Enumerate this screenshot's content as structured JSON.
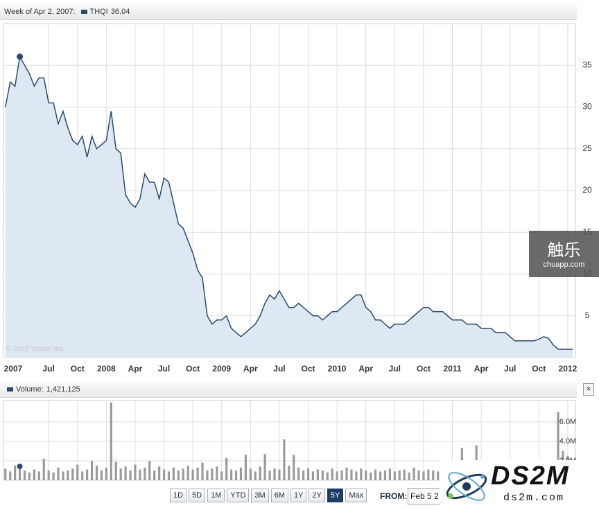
{
  "chart_data": [
    {
      "type": "area",
      "title": "Week of Apr 2, 2007:",
      "highlight_x": 3,
      "highlight_value": 36.04,
      "x": [
        1.5,
        2,
        2.5,
        3,
        3.5,
        4,
        4.5,
        5,
        5.5,
        6,
        6.5,
        7,
        7.5,
        8,
        8.5,
        9,
        9.5,
        10,
        10.5,
        11,
        11.5,
        12,
        12.5,
        13,
        13.5,
        14,
        14.5,
        15,
        15.5,
        16,
        16.5,
        17,
        17.5,
        18,
        18.5,
        19,
        19.5,
        20,
        20.5,
        21,
        21.5,
        22,
        22.5,
        23,
        23.5,
        24,
        24.5,
        25,
        25.5,
        26,
        26.5,
        27,
        27.5,
        28,
        28.5,
        29,
        29.5,
        30,
        30.5,
        31,
        31.5,
        32,
        32.5,
        33,
        33.5,
        34,
        34.5,
        35,
        35.5,
        36,
        36.5,
        37,
        37.5,
        38,
        38.5,
        39,
        39.5,
        40,
        40.5,
        41,
        41.5,
        42,
        42.5,
        43,
        43.5,
        44,
        44.5,
        45,
        45.5,
        46,
        46.5,
        47,
        47.5,
        48,
        48.5,
        49,
        49.5,
        50,
        50.5,
        51,
        51.5,
        52,
        52.5,
        53,
        53.5,
        54,
        54.5,
        55,
        55.5,
        56,
        56.5,
        57,
        57.5,
        58,
        58.5,
        59,
        59.5,
        60,
        60.5
      ],
      "series": [
        {
          "name": "THQI",
          "color": "#2b4a6b",
          "fill": "#dde8f3",
          "values": [
            30,
            33,
            32.5,
            36.04,
            35,
            34,
            32.5,
            33.5,
            33.5,
            30.5,
            30.5,
            28,
            29.5,
            27.5,
            26,
            25.5,
            26.5,
            24,
            26.5,
            25,
            25.5,
            26,
            29.5,
            25,
            24.5,
            19.5,
            18.5,
            18,
            19,
            22,
            21,
            21,
            19,
            21.5,
            21,
            18.5,
            16,
            15.5,
            14,
            12.5,
            10.5,
            9.5,
            5,
            4,
            4.5,
            4.5,
            5,
            3.5,
            3,
            2.5,
            3,
            3.5,
            4,
            5,
            6.5,
            7.5,
            7,
            8,
            7,
            6,
            6,
            6.5,
            6,
            5.5,
            5,
            5,
            4.5,
            5,
            5.5,
            5.5,
            6,
            6.5,
            7,
            7.5,
            7.5,
            6,
            5.5,
            4.5,
            4.5,
            4,
            3.5,
            4,
            4,
            4,
            4.5,
            5,
            5.5,
            6,
            6,
            5.5,
            5.5,
            5.5,
            5,
            4.5,
            4.5,
            4.5,
            4,
            4,
            4,
            3.5,
            3.5,
            3.5,
            3,
            3,
            3,
            2.5,
            2,
            2,
            2,
            2,
            2,
            2.2,
            2.5,
            2.3,
            1.5,
            1,
            1,
            1,
            1
          ]
        }
      ],
      "xlim": [
        1.3,
        60.8
      ],
      "ylim": [
        0,
        40
      ],
      "yticks": [
        5,
        10,
        15,
        20,
        25,
        30,
        35
      ],
      "xticks": [
        {
          "value": 0,
          "label": "2007"
        },
        {
          "value": 6,
          "label": "Jul"
        },
        {
          "value": 9,
          "label": "Oct"
        },
        {
          "value": 12,
          "label": "2008"
        },
        {
          "value": 15,
          "label": "Apr"
        },
        {
          "value": 18,
          "label": "Jul"
        },
        {
          "value": 21,
          "label": "Oct"
        },
        {
          "value": 24,
          "label": "2009"
        },
        {
          "value": 27,
          "label": "Apr"
        },
        {
          "value": 30,
          "label": "Jul"
        },
        {
          "value": 33,
          "label": "Oct"
        },
        {
          "value": 36,
          "label": "2010"
        },
        {
          "value": 39,
          "label": "Apr"
        },
        {
          "value": 42,
          "label": "Jul"
        },
        {
          "value": 45,
          "label": "Oct"
        },
        {
          "value": 48,
          "label": "2011"
        },
        {
          "value": 51,
          "label": "Apr"
        },
        {
          "value": 54,
          "label": "Jul"
        },
        {
          "value": 57,
          "label": "Oct"
        },
        {
          "value": 60,
          "label": "2012"
        }
      ],
      "grid": true,
      "annotation": "© 2012 Yahoo! Inc."
    },
    {
      "type": "bar",
      "title": "Volume:",
      "highlight_x": 3,
      "highlight_value": 1421125,
      "highlight_value_label": "1,421,125",
      "series": [
        {
          "name": "Volume",
          "color": "#9a9a9a",
          "values": [
            1200000,
            900000,
            1500000,
            1421125,
            1000000,
            800000,
            1100000,
            900000,
            2200000,
            1000000,
            800000,
            1300000,
            900000,
            1000000,
            1200000,
            1600000,
            900000,
            1100000,
            2000000,
            1500000,
            1000000,
            1300000,
            8000000,
            1900000,
            1200000,
            1400000,
            1000000,
            1600000,
            1100000,
            1300000,
            2000000,
            1000000,
            1400000,
            1100000,
            900000,
            1300000,
            1000000,
            1200000,
            1500000,
            1100000,
            1300000,
            1800000,
            1000000,
            1200000,
            1400000,
            900000,
            2300000,
            1100000,
            1000000,
            1300000,
            2600000,
            1200000,
            900000,
            1400000,
            2700000,
            1000000,
            1200000,
            1100000,
            4200000,
            1500000,
            2600000,
            1300000,
            1000000,
            1200000,
            900000,
            1100000,
            1000000,
            800000,
            1200000,
            900000,
            1000000,
            1300000,
            1100000,
            900000,
            1200000,
            1000000,
            800000,
            1100000,
            900000,
            1000000,
            1200000,
            900000,
            1000000,
            1100000,
            800000,
            1300000,
            1000000,
            900000,
            1100000,
            1000000,
            900000,
            1200000,
            1000000,
            800000,
            1100000,
            3300000,
            1000000,
            900000,
            3600000,
            1100000,
            1000000,
            900000,
            1200000,
            800000,
            1000000,
            1100000,
            900000,
            1000000,
            1200000,
            900000,
            1000000,
            1100000,
            1300000,
            1200000,
            1500000,
            7000000,
            3000000,
            2500000,
            1200000
          ]
        }
      ],
      "ylim": [
        0,
        8200000
      ],
      "yticks": [
        {
          "value": 2000000,
          "label": "2.0M"
        },
        {
          "value": 4000000,
          "label": "4.0M"
        },
        {
          "value": 6000000,
          "label": "6.0M"
        }
      ],
      "grid": true
    }
  ],
  "ui": {
    "close": "×",
    "ranges": [
      "1D",
      "5D",
      "1M",
      "YTD",
      "3M",
      "6M",
      "1Y",
      "2Y",
      "5Y",
      "Max"
    ],
    "selected_range": 8,
    "from_label": "FROM:",
    "from_value": "Feb 5 2",
    "watermark": {
      "title": "触乐",
      "site": "chuapp.com"
    },
    "logo": {
      "title": "DS2M",
      "site": "ds2m.com"
    }
  }
}
